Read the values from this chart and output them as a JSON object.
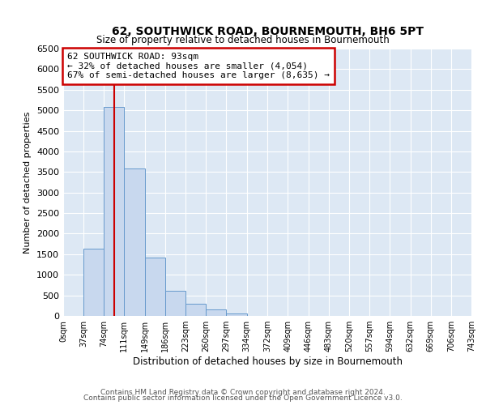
{
  "title": "62, SOUTHWICK ROAD, BOURNEMOUTH, BH6 5PT",
  "subtitle": "Size of property relative to detached houses in Bournemouth",
  "xlabel": "Distribution of detached houses by size in Bournemouth",
  "ylabel": "Number of detached properties",
  "bar_color": "#c8d8ee",
  "bar_edge_color": "#6699cc",
  "background_color": "#dde8f4",
  "grid_color": "#ffffff",
  "property_line_x": 93,
  "property_line_color": "#cc0000",
  "annotation_box_color": "#cc0000",
  "annotation_title": "62 SOUTHWICK ROAD: 93sqm",
  "annotation_line1": "← 32% of detached houses are smaller (4,054)",
  "annotation_line2": "67% of semi-detached houses are larger (8,635) →",
  "bin_edges": [
    0,
    37,
    74,
    111,
    149,
    186,
    223,
    260,
    297,
    334,
    372,
    409,
    446,
    483,
    520,
    557,
    594,
    632,
    669,
    706,
    743
  ],
  "bin_counts": [
    0,
    1630,
    5080,
    3580,
    1420,
    610,
    305,
    155,
    55,
    5,
    0,
    0,
    0,
    0,
    0,
    0,
    0,
    0,
    0,
    0
  ],
  "ylim": [
    0,
    6500
  ],
  "xlim": [
    0,
    743
  ],
  "yticks": [
    0,
    500,
    1000,
    1500,
    2000,
    2500,
    3000,
    3500,
    4000,
    4500,
    5000,
    5500,
    6000,
    6500
  ],
  "xtick_labels": [
    "0sqm",
    "37sqm",
    "74sqm",
    "111sqm",
    "149sqm",
    "186sqm",
    "223sqm",
    "260sqm",
    "297sqm",
    "334sqm",
    "372sqm",
    "409sqm",
    "446sqm",
    "483sqm",
    "520sqm",
    "557sqm",
    "594sqm",
    "632sqm",
    "669sqm",
    "706sqm",
    "743sqm"
  ],
  "footer1": "Contains HM Land Registry data © Crown copyright and database right 2024.",
  "footer2": "Contains public sector information licensed under the Open Government Licence v3.0."
}
